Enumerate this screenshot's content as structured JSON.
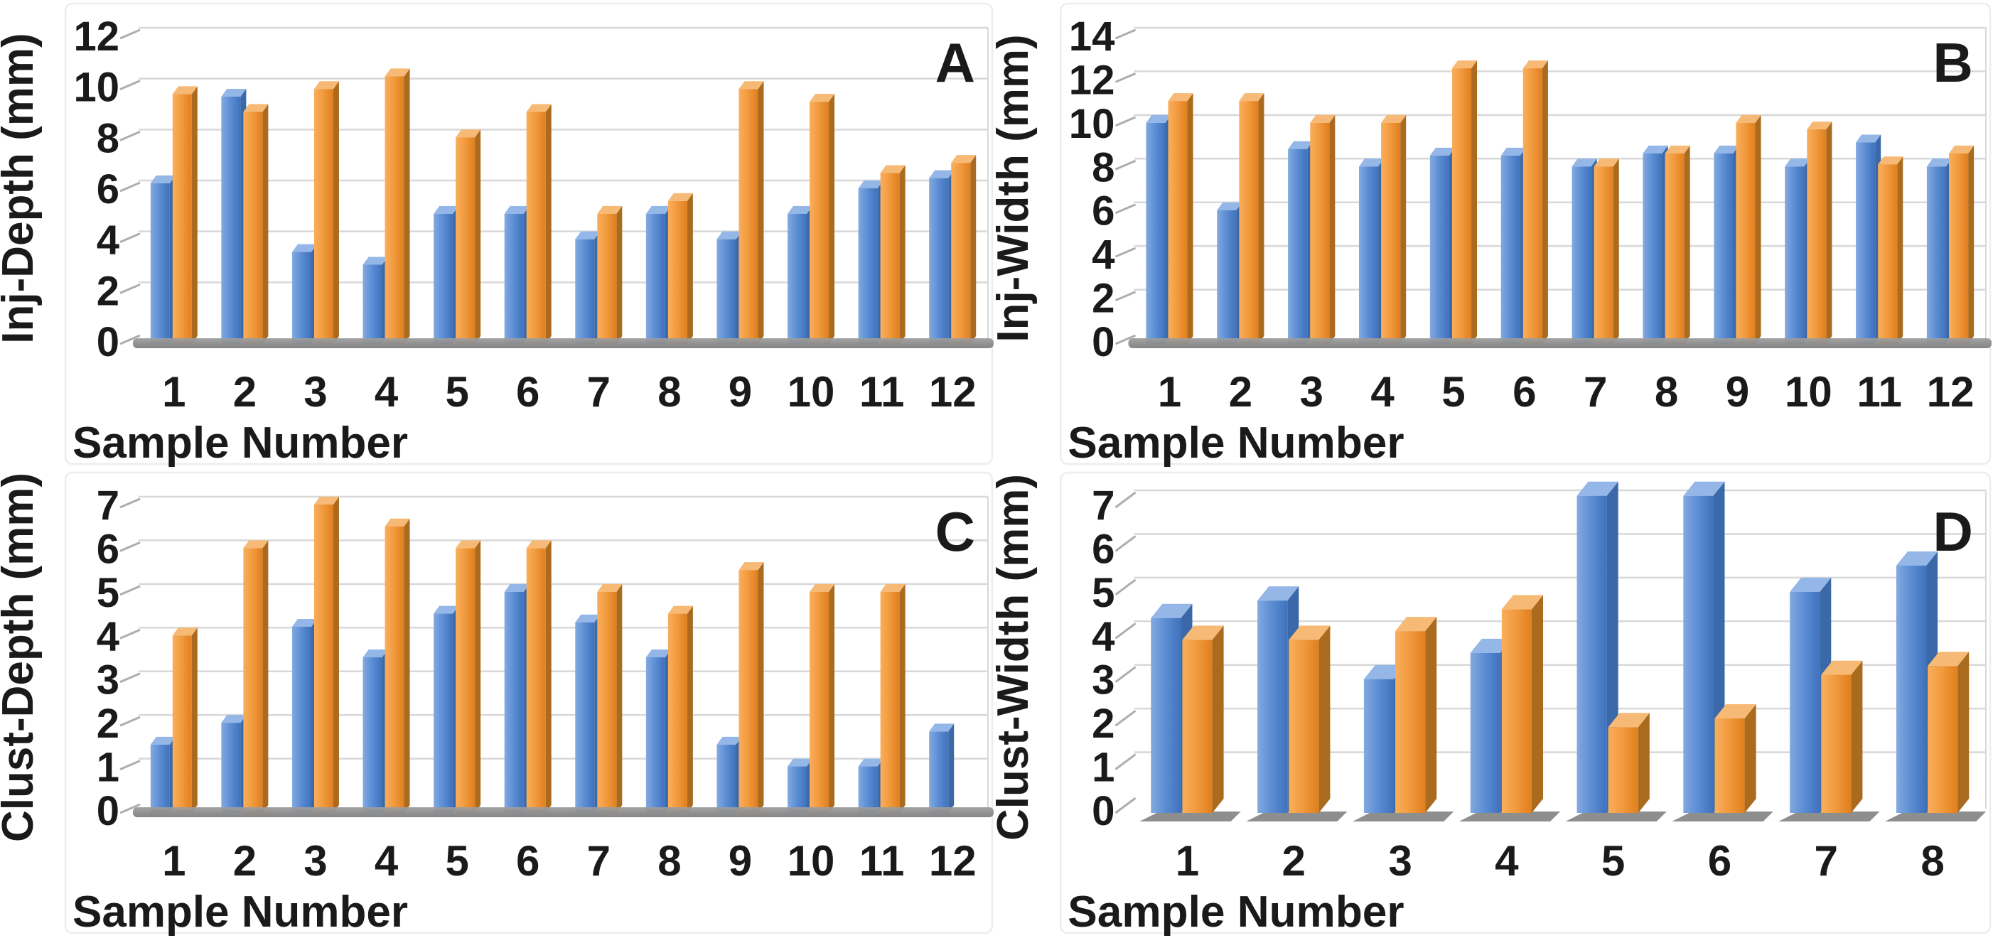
{
  "figure": {
    "background": "#ffffff",
    "xlabel": "Sample Number"
  },
  "colors": {
    "blue_front_light": "#83A9E0",
    "blue_front_mid": "#5E8FD5",
    "blue_front_dark": "#3E72BC",
    "blue_top": "#95B7E8",
    "blue_side": "#3A68A8",
    "orange_front_light": "#F9AE5C",
    "orange_front_mid": "#F29B3F",
    "orange_front_dark": "#E07F1E",
    "orange_top": "#F6BA76",
    "orange_side": "#AA6B1E",
    "gridline": "#D8D8D8",
    "tick_dash": "#ADADAD",
    "floor_light": "#9E9E9E",
    "floor_dark": "#7E7E7E",
    "frame": "#EDEDED",
    "text": "#1A1A1A"
  },
  "chart_data": [
    {
      "panel_letter": "A",
      "type": "bar",
      "title": "",
      "ylabel": "Inj-Depth (mm)",
      "xlabel": "Sample Number",
      "ylim": [
        0,
        12
      ],
      "ytick_step": 2,
      "grid": true,
      "legend": "none",
      "categories": [
        "1",
        "2",
        "3",
        "4",
        "5",
        "6",
        "7",
        "8",
        "9",
        "10",
        "11",
        "12"
      ],
      "series": [
        {
          "name": "blue",
          "values": [
            6.2,
            9.6,
            3.5,
            3.0,
            5.0,
            5.0,
            4.0,
            5.0,
            4.0,
            5.0,
            6.0,
            6.4
          ]
        },
        {
          "name": "orange",
          "values": [
            9.7,
            9.0,
            9.9,
            10.4,
            8.0,
            9.0,
            5.0,
            5.5,
            9.9,
            9.4,
            6.6,
            7.0
          ]
        }
      ]
    },
    {
      "panel_letter": "B",
      "type": "bar",
      "title": "",
      "ylabel": "Inj-Width (mm)",
      "xlabel": "Sample Number",
      "ylim": [
        0,
        14
      ],
      "ytick_step": 2,
      "grid": true,
      "legend": "none",
      "categories": [
        "1",
        "2",
        "3",
        "4",
        "5",
        "6",
        "7",
        "8",
        "9",
        "10",
        "11",
        "12"
      ],
      "series": [
        {
          "name": "blue",
          "values": [
            10.0,
            6.0,
            8.8,
            8.0,
            8.5,
            8.5,
            8.0,
            8.6,
            8.6,
            8.0,
            9.1,
            8.0
          ]
        },
        {
          "name": "orange",
          "values": [
            11.0,
            11.0,
            10.0,
            10.0,
            12.5,
            12.5,
            8.0,
            8.6,
            10.0,
            9.7,
            8.1,
            8.6
          ]
        }
      ]
    },
    {
      "panel_letter": "C",
      "type": "bar",
      "title": "",
      "ylabel": "Clust-Depth (mm)",
      "xlabel": "Sample Number",
      "ylim": [
        0,
        7
      ],
      "ytick_step": 1,
      "grid": true,
      "legend": "none",
      "categories": [
        "1",
        "2",
        "3",
        "4",
        "5",
        "6",
        "7",
        "8",
        "9",
        "10",
        "11",
        "12"
      ],
      "series": [
        {
          "name": "blue",
          "values": [
            1.5,
            2.0,
            4.2,
            3.5,
            4.5,
            5.0,
            4.3,
            3.5,
            1.5,
            1.0,
            1.0,
            1.8
          ]
        },
        {
          "name": "orange",
          "values": [
            4.0,
            6.0,
            7.0,
            6.5,
            6.0,
            6.0,
            5.0,
            4.5,
            5.5,
            5.0,
            5.0,
            null
          ]
        }
      ]
    },
    {
      "panel_letter": "D",
      "type": "bar",
      "title": "",
      "ylabel": "Clust-Width (mm)",
      "xlabel": "Sample Number",
      "ylim": [
        0,
        7
      ],
      "ytick_step": 1,
      "grid": true,
      "legend": "none",
      "categories": [
        "1",
        "2",
        "3",
        "4",
        "5",
        "6",
        "7",
        "8"
      ],
      "series": [
        {
          "name": "blue",
          "values": [
            4.4,
            4.8,
            3.0,
            3.6,
            7.2,
            7.2,
            5.0,
            5.6
          ]
        },
        {
          "name": "orange",
          "values": [
            3.9,
            3.9,
            4.1,
            4.6,
            1.9,
            2.1,
            3.1,
            3.3
          ]
        }
      ]
    }
  ]
}
